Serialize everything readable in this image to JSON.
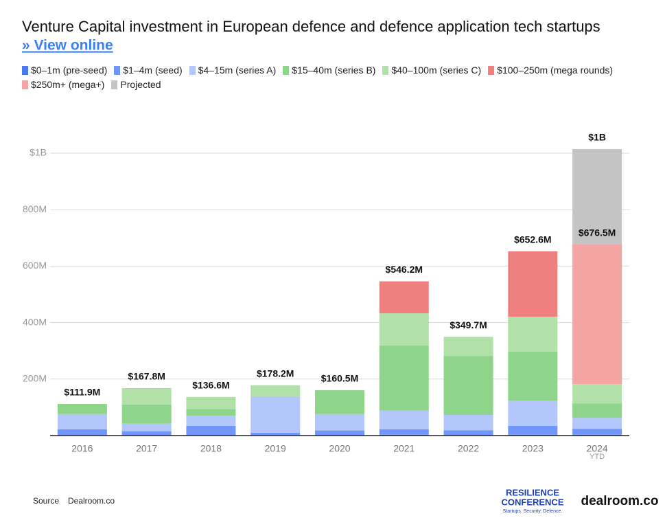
{
  "title": "Venture Capital investment in European defence and defence application tech startups",
  "link": "» View online",
  "chart_data": {
    "type": "stacked-bar",
    "categories": [
      "2016",
      "2017",
      "2018",
      "2019",
      "2020",
      "2021",
      "2022",
      "2023",
      "2024"
    ],
    "last_category_note": "YTD",
    "series": [
      {
        "name": "$0–1m (pre-seed)",
        "color": "#4a78f2",
        "values": [
          2,
          2,
          2,
          2,
          2,
          3,
          2,
          3,
          3
        ]
      },
      {
        "name": "$1–4m (seed)",
        "color": "#6f96f8",
        "values": [
          20,
          13,
          32,
          8,
          16,
          19,
          17,
          31,
          21
        ]
      },
      {
        "name": "$4–15m (series A)",
        "color": "#b4c7fc",
        "values": [
          54,
          27,
          36,
          129,
          58,
          66,
          54,
          90,
          39
        ]
      },
      {
        "name": "$15–40m (series B)",
        "color": "#8fd48b",
        "values": [
          36,
          68,
          24,
          0,
          84.5,
          231,
          209,
          173,
          51
        ]
      },
      {
        "name": "$40–100m (series C)",
        "color": "#b1e0a9",
        "values": [
          0,
          58,
          42.6,
          39.2,
          0,
          114,
          67.7,
          124,
          68
        ]
      },
      {
        "name": "$100–250m (mega rounds)",
        "color": "#f07f7f",
        "values": [
          0,
          0,
          0,
          0,
          0,
          113.2,
          0,
          231.6,
          0
        ]
      },
      {
        "name": "$250m+ (mega+)",
        "color": "#f5a4a4",
        "values": [
          0,
          0,
          0,
          0,
          0,
          0,
          0,
          0,
          494.5
        ]
      },
      {
        "name": "Projected",
        "color": "#c4c4c4",
        "values": [
          0,
          0,
          0,
          0,
          0,
          0,
          0,
          0,
          338
        ]
      }
    ],
    "totals": {
      "values": [
        111.9,
        167.8,
        136.6,
        178.2,
        160.5,
        546.2,
        349.7,
        652.6,
        676.5
      ],
      "value_labels": [
        "$111.9M",
        "$167.8M",
        "$136.6M",
        "$178.2M",
        "$160.5M",
        "$546.2M",
        "$349.7M",
        "$652.6M",
        "$676.5M"
      ]
    },
    "projected_total": {
      "value": 1000,
      "label": "$1B"
    },
    "ylim": [
      0,
      1050
    ],
    "yticks": [
      {
        "value": 200,
        "label": "200M"
      },
      {
        "value": 400,
        "label": "400M"
      },
      {
        "value": 600,
        "label": "600M"
      },
      {
        "value": 800,
        "label": "800M"
      },
      {
        "value": 1000,
        "label": "$1B"
      }
    ],
    "grid": true
  },
  "footer": {
    "source_label": "Source",
    "source": "Dealroom.co",
    "logo_line1": "RESILIENCE",
    "logo_line2": "CONFERENCE",
    "logo_tagline": "Startups. Security. Defence.",
    "brand": "dealroom.co"
  }
}
